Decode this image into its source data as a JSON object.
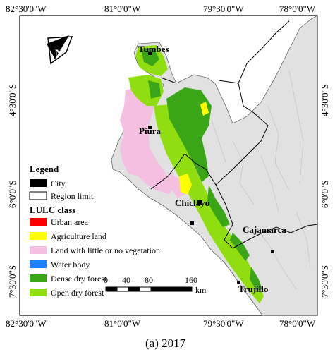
{
  "coordinates": {
    "top": [
      "82°30'0\"W",
      "81°0'0\"W",
      "79°30'0\"W",
      "78°0'0\"W"
    ],
    "bottom": [
      "82°30'0\"W",
      "81°0'0\"W",
      "79°30'0\"W",
      "78°0'0\"W"
    ],
    "left": [
      "4°30'0\"S",
      "6°0'0\"S",
      "7°30'0\"S"
    ],
    "right": [
      "4°30'0\"S",
      "6°0'0\"S",
      "7°30'0\"S"
    ]
  },
  "places": {
    "tumbes": "Tumbes",
    "piura": "Piura",
    "chiclayo": "Chiclayo",
    "cajamarca": "Cajamarca",
    "trujillo": "Trujillo"
  },
  "north_arrow": {
    "letter": "N",
    "icon": "north-arrow-icon"
  },
  "legend": {
    "title": "Legend",
    "city": "City",
    "region": "Region limit",
    "lulc_title": "LULC class",
    "classes": [
      {
        "label": "Urban area",
        "color": "#ff0000"
      },
      {
        "label": "Agriculture land",
        "color": "#ffff00"
      },
      {
        "label": "Land with little or no vegetation",
        "color": "#f4bfe0"
      },
      {
        "label": "Water body",
        "color": "#1f7fff"
      },
      {
        "label": "Dense dry forest",
        "color": "#3aa517"
      },
      {
        "label": "Open dry forest",
        "color": "#90dd10"
      }
    ],
    "city_color": "#000000"
  },
  "scale_bar": {
    "labels": [
      "0",
      "40",
      "80",
      "160"
    ],
    "unit": "km"
  },
  "caption": "(a) 2017",
  "colors": {
    "ocean": "#ffffff",
    "land": "#e1e1e1",
    "outside": "#e9e9e9"
  }
}
